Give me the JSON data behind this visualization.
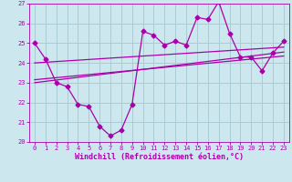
{
  "xlabel": "Windchill (Refroidissement éolien,°C)",
  "xlim": [
    -0.5,
    23.5
  ],
  "ylim": [
    20,
    27
  ],
  "yticks": [
    20,
    21,
    22,
    23,
    24,
    25,
    26,
    27
  ],
  "xticks": [
    0,
    1,
    2,
    3,
    4,
    5,
    6,
    7,
    8,
    9,
    10,
    11,
    12,
    13,
    14,
    15,
    16,
    17,
    18,
    19,
    20,
    21,
    22,
    23
  ],
  "bg_color": "#cce8ee",
  "grid_color": "#aaccd4",
  "line_color": "#aa00aa",
  "main_data_x": [
    0,
    1,
    2,
    3,
    4,
    5,
    6,
    7,
    8,
    9,
    10,
    11,
    12,
    13,
    14,
    15,
    16,
    17,
    18,
    19,
    20,
    21,
    22,
    23
  ],
  "main_data_y": [
    25.0,
    24.2,
    23.0,
    22.8,
    21.9,
    21.8,
    20.8,
    20.3,
    20.6,
    21.9,
    25.6,
    25.4,
    24.9,
    25.1,
    24.9,
    26.3,
    26.2,
    27.1,
    25.5,
    24.3,
    24.3,
    23.6,
    24.5,
    25.1
  ],
  "trend1_x": [
    0,
    23
  ],
  "trend1_y": [
    24.0,
    24.8
  ],
  "trend2_x": [
    0,
    23
  ],
  "trend2_y": [
    23.0,
    24.55
  ],
  "trend3_x": [
    0,
    23
  ],
  "trend3_y": [
    23.15,
    24.35
  ],
  "marker": "D",
  "markersize": 2.5,
  "linewidth": 0.9,
  "font_color": "#aa00aa",
  "tick_fontsize": 5.0,
  "label_fontsize": 6.0
}
